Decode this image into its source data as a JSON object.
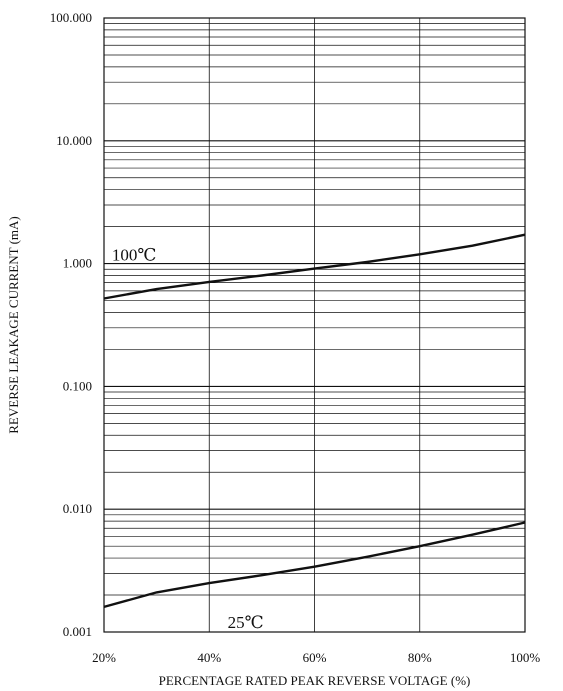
{
  "chart_data": {
    "type": "line",
    "title": "",
    "xlabel": "PERCENTAGE RATED PEAK REVERSE VOLTAGE (%)",
    "ylabel": "REVERSE LEAKAGE CURRENT (mA)",
    "x_scale": "linear",
    "y_scale": "log",
    "xlim": [
      20,
      100
    ],
    "ylim": [
      0.001,
      100
    ],
    "x_ticks": [
      20,
      40,
      60,
      80,
      100
    ],
    "x_tick_labels": [
      "20%",
      "40%",
      "60%",
      "80%",
      "100%"
    ],
    "y_ticks": [
      0.001,
      0.01,
      0.1,
      1,
      10,
      100
    ],
    "y_tick_labels": [
      "0.001",
      "0.010",
      "0.100",
      "1.000",
      "10.000",
      "100.000"
    ],
    "grid": true,
    "series": [
      {
        "name": "100℃",
        "x": [
          20,
          30,
          40,
          50,
          60,
          70,
          80,
          90,
          100
        ],
        "y": [
          0.52,
          0.62,
          0.71,
          0.8,
          0.91,
          1.03,
          1.19,
          1.4,
          1.72
        ]
      },
      {
        "name": "25℃",
        "x": [
          20,
          30,
          40,
          50,
          60,
          70,
          80,
          90,
          100
        ],
        "y": [
          0.0016,
          0.0021,
          0.0025,
          0.0029,
          0.0034,
          0.0041,
          0.005,
          0.0062,
          0.0078
        ]
      }
    ]
  }
}
